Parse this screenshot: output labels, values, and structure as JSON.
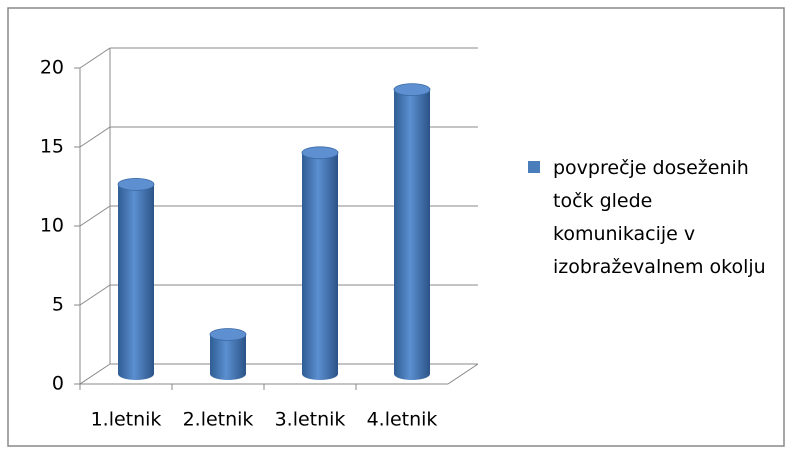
{
  "chart_data": {
    "type": "bar3d",
    "categories": [
      "1.letnik",
      "2.letnik",
      "3.letnik",
      "4.letnik"
    ],
    "series": [
      {
        "name": "povprečje doseženih točk glede komunikacije v izobraževalnem okolju",
        "color": "#4a7ebb",
        "values": [
          12,
          2.5,
          14,
          18
        ]
      }
    ],
    "ylim": [
      0,
      20
    ],
    "yticks": [
      0,
      5,
      10,
      15,
      20
    ],
    "grid": true,
    "legend": "right"
  }
}
